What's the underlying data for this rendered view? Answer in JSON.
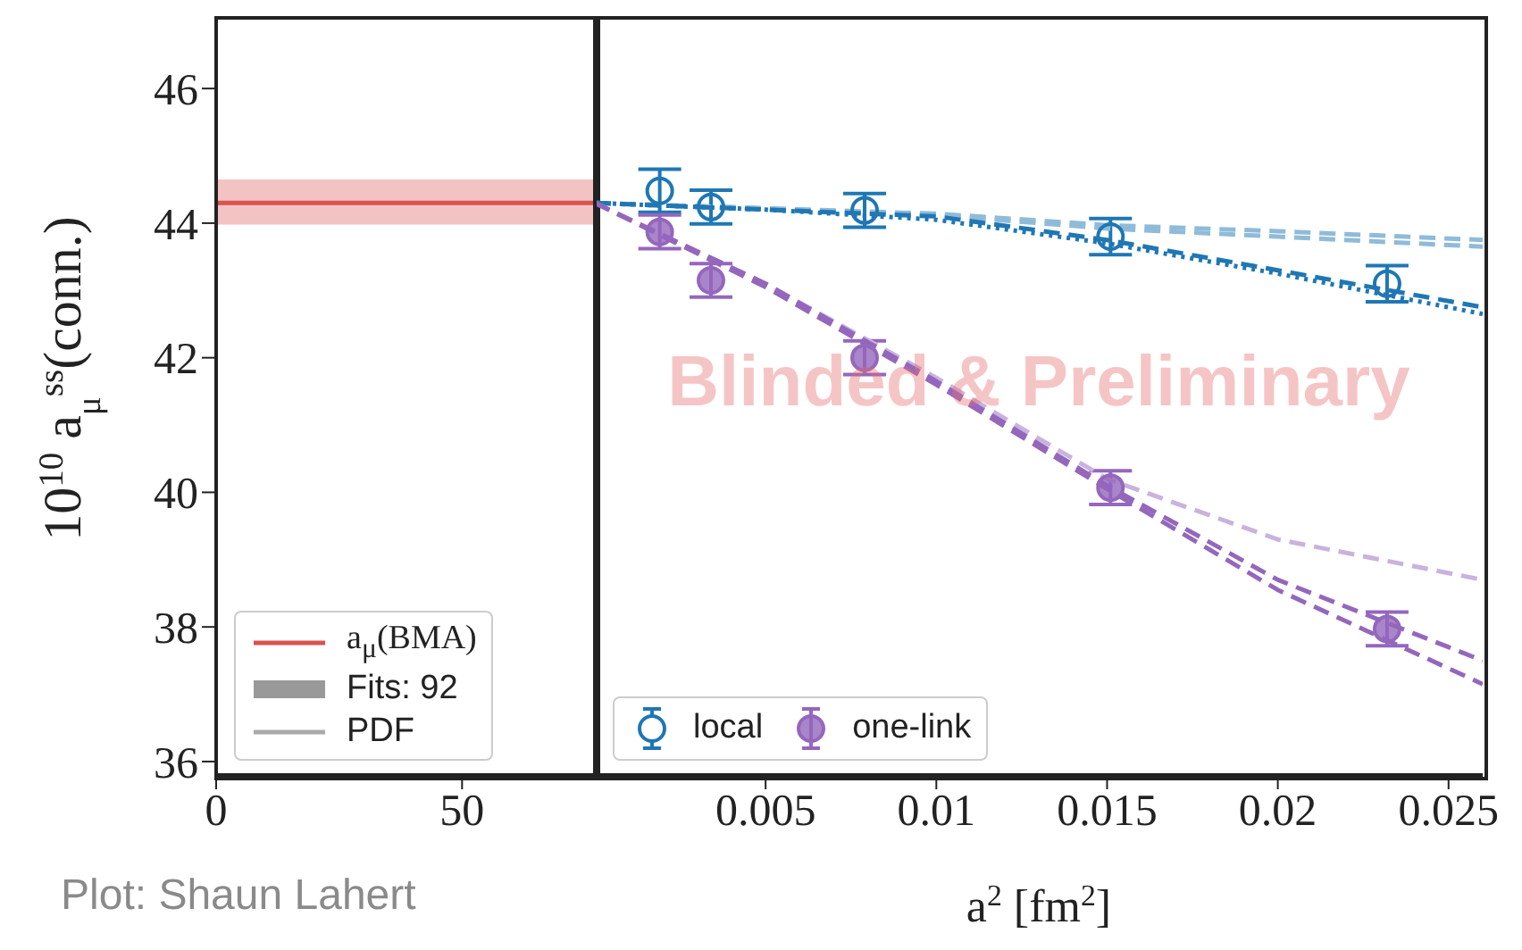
{
  "chart_data": [
    {
      "type": "line",
      "ylabel": "10$^{10}$ a$_{μ}$$^{ss}$(conn.)",
      "xlim": [
        0,
        77
      ],
      "xticks": [
        0,
        50
      ],
      "ylim": [
        35.8,
        47.05
      ],
      "yticks": [
        36,
        38,
        40,
        42,
        44,
        46
      ],
      "legend": "bottom left",
      "series": [
        {
          "name": "a$_{μ}$(BMA)",
          "color": "#d9534f",
          "x": [
            0,
            77
          ],
          "values": [
            44.3,
            44.3
          ],
          "lower": [
            43.98,
            43.98
          ],
          "upper": [
            44.65,
            44.65
          ]
        },
        {
          "name": "Fits: 92",
          "type": "bar",
          "color": "#999999"
        },
        {
          "name": "PDF",
          "color": "#aaaaaa"
        }
      ],
      "annotations": [
        "Plot: Shaun Lahert"
      ]
    },
    {
      "type": "scatter",
      "xlabel": "a$^{2}$ [fm$^{2}$]",
      "xlim": [
        0,
        0.026
      ],
      "xticks": [
        0.005,
        0.01,
        0.015,
        0.02,
        0.025
      ],
      "ylim": [
        35.8,
        47.05
      ],
      "yticks": [
        36,
        38,
        40,
        42,
        44,
        46
      ],
      "tick_labels": "x",
      "legend": "bottom left",
      "series": [
        {
          "name": "local",
          "marker": "circle",
          "color": "#1f77b4",
          "x": [
            0.0019,
            0.0034,
            0.0079,
            0.0151,
            0.0232
          ],
          "values": [
            44.48,
            44.24,
            44.19,
            43.8,
            43.1
          ],
          "errors": [
            0.32,
            0.25,
            0.25,
            0.27,
            0.27
          ]
        },
        {
          "name": "one-link",
          "marker": "circle",
          "color": "#9467bd",
          "x": [
            0.0019,
            0.0034,
            0.0079,
            0.0151,
            0.0232
          ],
          "values": [
            43.87,
            43.15,
            42.0,
            40.07,
            37.97
          ],
          "errors": [
            0.25,
            0.25,
            0.25,
            0.25,
            0.25
          ]
        },
        {
          "type": "line",
          "line_style": "dashed",
          "color": "#8fbbd9",
          "x": [
            0,
            0.005,
            0.01,
            0.015,
            0.02,
            0.026
          ],
          "values": [
            44.3,
            44.22,
            44.12,
            43.92,
            43.8,
            43.65
          ]
        },
        {
          "type": "line",
          "line_style": "dashed",
          "color": "#8fbbd9",
          "x": [
            0,
            0.005,
            0.01,
            0.015,
            0.02,
            0.026
          ],
          "values": [
            44.3,
            44.22,
            44.14,
            43.97,
            43.88,
            43.75
          ]
        },
        {
          "type": "line",
          "line_style": "dashed",
          "color": "#1f77b4",
          "x": [
            0,
            0.005,
            0.01,
            0.015,
            0.02,
            0.026
          ],
          "values": [
            44.3,
            44.2,
            44.1,
            43.75,
            43.3,
            42.75
          ]
        },
        {
          "type": "line",
          "line_style": "dotted",
          "color": "#1f77b4",
          "x": [
            0,
            0.005,
            0.01,
            0.015,
            0.02,
            0.026
          ],
          "values": [
            44.3,
            44.2,
            44.05,
            43.7,
            43.25,
            42.65
          ]
        },
        {
          "type": "line",
          "line_style": "dashed",
          "color": "#c9b3de",
          "x": [
            0,
            0.005,
            0.01,
            0.015,
            0.02,
            0.026
          ],
          "values": [
            44.3,
            43.1,
            41.7,
            40.2,
            39.3,
            38.7
          ]
        },
        {
          "type": "line",
          "line_style": "dashed",
          "color": "#9467bd",
          "x": [
            0,
            0.005,
            0.01,
            0.015,
            0.02,
            0.026
          ],
          "values": [
            44.3,
            43.1,
            41.65,
            40.1,
            38.7,
            37.5
          ]
        },
        {
          "type": "line",
          "line_style": "dashed",
          "color": "#9467bd",
          "x": [
            0,
            0.005,
            0.01,
            0.015,
            0.02,
            0.026
          ],
          "values": [
            44.3,
            43.05,
            41.6,
            40.05,
            38.55,
            37.15
          ]
        }
      ],
      "annotations": [
        "Blinded & Preliminary"
      ]
    }
  ]
}
